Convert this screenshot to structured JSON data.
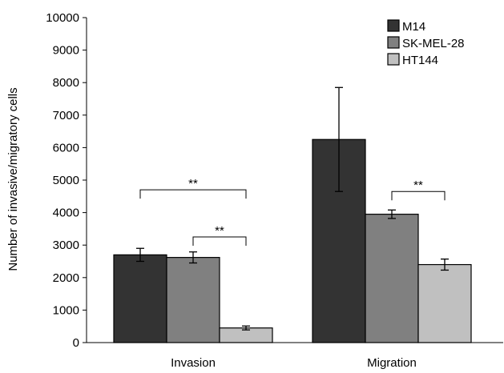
{
  "chart_data": {
    "type": "bar",
    "title": "",
    "xlabel": "",
    "ylabel": "Number of invasive/migratory cells",
    "ylim": [
      0,
      10000
    ],
    "yticks": [
      0,
      1000,
      2000,
      3000,
      4000,
      5000,
      6000,
      7000,
      8000,
      9000,
      10000
    ],
    "categories": [
      "Invasion",
      "Migration"
    ],
    "series": [
      {
        "name": "M14",
        "color": "#333333",
        "values": [
          2700,
          6250
        ],
        "errors": [
          200,
          1600
        ]
      },
      {
        "name": "SK-MEL-28",
        "color": "#808080",
        "values": [
          2620,
          3950
        ],
        "errors": [
          170,
          130
        ]
      },
      {
        "name": "HT144",
        "color": "#c0c0c0",
        "values": [
          450,
          2400
        ],
        "errors": [
          60,
          170
        ]
      }
    ],
    "legend_position": "top-right",
    "grid": false,
    "significance": [
      {
        "category": "Invasion",
        "from_series": "M14",
        "to_series": "HT144",
        "label": "**",
        "level": 4700
      },
      {
        "category": "Invasion",
        "from_series": "SK-MEL-28",
        "to_series": "HT144",
        "label": "**",
        "level": 3250
      },
      {
        "category": "Migration",
        "from_series": "SK-MEL-28",
        "to_series": "HT144",
        "label": "**",
        "level": 4650
      }
    ]
  }
}
